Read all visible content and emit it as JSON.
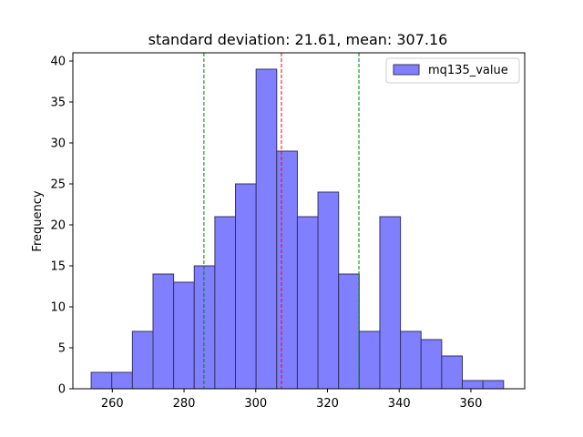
{
  "chart_data": {
    "type": "bar",
    "title": "standard deviation: 21.61, mean: 307.16",
    "xlabel": "",
    "ylabel": "Frequency",
    "xlim": [
      249,
      375
    ],
    "ylim": [
      0,
      41
    ],
    "x_ticks": [
      260,
      280,
      300,
      320,
      340,
      360
    ],
    "y_ticks": [
      0,
      5,
      10,
      15,
      20,
      25,
      30,
      35,
      40
    ],
    "bins": {
      "start": 254.1,
      "width": 5.75,
      "counts": [
        2,
        2,
        7,
        14,
        13,
        15,
        21,
        25,
        39,
        29,
        21,
        24,
        14,
        7,
        21,
        7,
        6,
        4,
        1,
        1
      ]
    },
    "reference_lines": [
      {
        "role": "mean",
        "x": 307.16,
        "color": "#ff0000",
        "style": "dashed"
      },
      {
        "role": "mean-minus-std",
        "x": 285.55,
        "color": "#008000",
        "style": "dashed"
      },
      {
        "role": "mean-plus-std",
        "x": 328.77,
        "color": "#008000",
        "style": "dashed"
      }
    ],
    "legend": {
      "position": "top-right",
      "entries": [
        {
          "label": "mq135_value",
          "color": "#8080ff"
        }
      ]
    },
    "bar_fill": "#8080ff",
    "bar_edge": "#333366",
    "grid": false
  }
}
